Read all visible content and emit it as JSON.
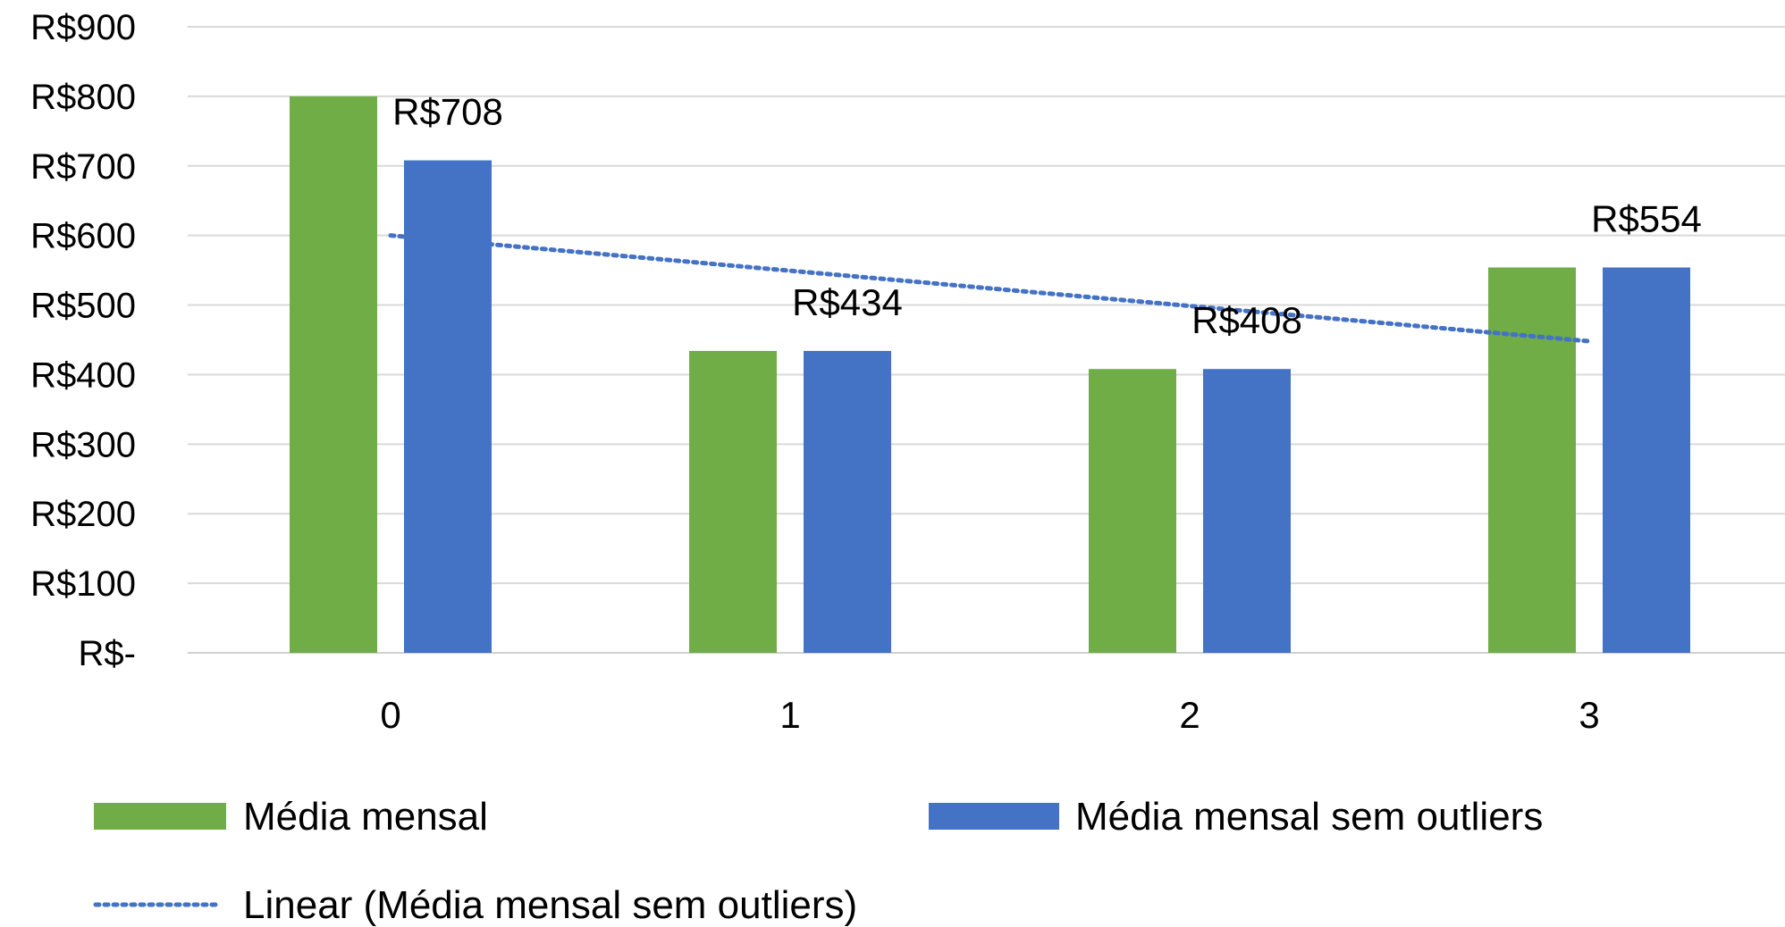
{
  "chart_data": {
    "type": "bar",
    "categories": [
      "0",
      "1",
      "2",
      "3"
    ],
    "series": [
      {
        "name": "Média mensal",
        "color": "#70ad47",
        "values": [
          800,
          434,
          408,
          554
        ]
      },
      {
        "name": "Média mensal sem outliers",
        "color": "#4472c4",
        "values": [
          708,
          434,
          408,
          554
        ]
      }
    ],
    "data_labels": [
      "R$708",
      "R$434",
      "R$408",
      "R$554"
    ],
    "trendline": {
      "name": "Linear (Média mensal sem outliers)",
      "type": "linear",
      "style": "dotted",
      "color": "#4472c4",
      "start": 600,
      "end": 448
    },
    "y_ticks": [
      "R$-",
      "R$100",
      "R$200",
      "R$300",
      "R$400",
      "R$500",
      "R$600",
      "R$700",
      "R$800",
      "R$900"
    ],
    "ylim": [
      0,
      900
    ],
    "grid": true,
    "legend_position": "bottom"
  }
}
